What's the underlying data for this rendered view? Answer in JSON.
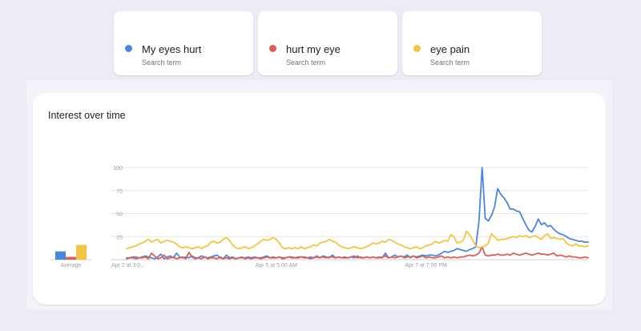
{
  "terms": [
    {
      "name": "My eyes hurt",
      "sub": "Search term",
      "color": "#4a86e0"
    },
    {
      "name": "hurt my eye",
      "sub": "Search term",
      "color": "#db5f57"
    },
    {
      "name": "eye pain",
      "sub": "Search term",
      "color": "#f4c542"
    }
  ],
  "chart_data": {
    "type": "line",
    "title": "Interest over time",
    "ylim": [
      0,
      100
    ],
    "yticks": [
      {
        "value": 100,
        "label": "100"
      },
      {
        "value": 75,
        "label": "75"
      },
      {
        "value": 50,
        "label": "50"
      },
      {
        "value": 25,
        "label": "25"
      }
    ],
    "x_count": 149,
    "xticks": [
      {
        "index": 0,
        "label": "Apr 2 at 3:0..."
      },
      {
        "index": 48,
        "label": "Apr 5 at 5:00 AM"
      },
      {
        "index": 96,
        "label": "Apr 7 at 7:00 PM"
      }
    ],
    "average": {
      "label": "Average",
      "values": [
        {
          "series": "My eyes hurt",
          "value": 9
        },
        {
          "series": "hurt my eye",
          "value": 3
        },
        {
          "series": "eye pain",
          "value": 16
        }
      ]
    },
    "series": [
      {
        "name": "My eyes hurt",
        "color": "#4a86e0",
        "values": [
          2,
          2,
          3,
          3,
          2,
          3,
          4,
          3,
          2,
          1,
          3,
          6,
          1,
          3,
          4,
          2,
          7,
          3,
          2,
          3,
          2,
          4,
          2,
          2,
          4,
          3,
          2,
          3,
          4,
          5,
          2,
          1,
          5,
          2,
          3,
          1,
          2,
          2,
          2,
          3,
          2,
          3,
          2,
          2,
          3,
          4,
          2,
          3,
          2,
          3,
          2,
          2,
          3,
          3,
          2,
          3,
          3,
          3,
          2,
          3,
          2,
          4,
          2,
          4,
          3,
          2,
          5,
          2,
          3,
          2,
          3,
          2,
          3,
          2,
          4,
          2,
          2,
          3,
          2,
          3,
          2,
          3,
          2,
          7,
          2,
          3,
          5,
          3,
          4,
          3,
          5,
          2,
          4,
          3,
          4,
          5,
          4,
          5,
          5,
          4,
          5,
          7,
          9,
          8,
          9,
          10,
          12,
          11,
          10,
          9,
          11,
          12,
          14,
          42,
          100,
          45,
          42,
          48,
          57,
          77,
          71,
          67,
          62,
          55,
          55,
          53,
          52,
          45,
          38,
          32,
          30,
          36,
          44,
          38,
          40,
          36,
          37,
          33,
          30,
          28,
          27,
          25,
          23,
          22,
          21,
          20,
          20,
          19,
          19
        ]
      },
      {
        "name": "hurt my eye",
        "color": "#db5f57",
        "values": [
          1,
          2,
          2,
          1,
          2,
          2,
          3,
          1,
          7,
          4,
          1,
          2,
          5,
          1,
          2,
          3,
          1,
          2,
          3,
          1,
          8,
          3,
          1,
          2,
          1,
          3,
          1,
          2,
          2,
          1,
          3,
          1,
          2,
          1,
          2,
          1,
          2,
          3,
          1,
          2,
          1,
          2,
          2,
          1,
          2,
          3,
          2,
          2,
          2,
          3,
          1,
          2,
          3,
          2,
          2,
          2,
          3,
          2,
          2,
          1,
          2,
          3,
          2,
          3,
          2,
          3,
          3,
          2,
          3,
          2,
          2,
          2,
          3,
          4,
          2,
          3,
          2,
          3,
          2,
          3,
          2,
          2,
          3,
          4,
          2,
          3,
          2,
          3,
          4,
          2,
          3,
          3,
          4,
          2,
          3,
          4,
          2,
          3,
          2,
          2,
          3,
          4,
          2,
          3,
          2,
          3,
          2,
          3,
          3,
          4,
          5,
          4,
          5,
          7,
          14,
          5,
          4,
          5,
          5,
          6,
          5,
          5,
          6,
          5,
          7,
          6,
          5,
          6,
          7,
          6,
          5,
          6,
          7,
          6,
          6,
          5,
          6,
          7,
          4,
          5,
          4,
          3,
          4,
          3,
          3,
          2,
          2,
          3,
          2
        ]
      },
      {
        "name": "eye pain",
        "color": "#f4c542",
        "values": [
          12,
          13,
          14,
          15,
          17,
          18,
          20,
          22,
          19,
          21,
          22,
          18,
          20,
          21,
          20,
          19,
          17,
          14,
          13,
          14,
          13,
          12,
          13,
          14,
          12,
          14,
          15,
          19,
          20,
          18,
          19,
          22,
          24,
          21,
          16,
          13,
          12,
          13,
          14,
          12,
          13,
          15,
          17,
          20,
          22,
          21,
          22,
          24,
          22,
          18,
          13,
          12,
          13,
          12,
          13,
          12,
          14,
          12,
          13,
          14,
          16,
          15,
          18,
          19,
          20,
          22,
          20,
          19,
          16,
          14,
          13,
          12,
          13,
          14,
          13,
          12,
          13,
          14,
          16,
          18,
          17,
          18,
          20,
          19,
          22,
          21,
          19,
          17,
          16,
          14,
          13,
          12,
          13,
          14,
          12,
          13,
          15,
          16,
          17,
          20,
          18,
          19,
          21,
          20,
          27,
          25,
          18,
          19,
          21,
          31,
          27,
          21,
          15,
          13,
          14,
          15,
          18,
          28,
          25,
          21,
          22,
          22,
          23,
          24,
          25,
          24,
          26,
          25,
          26,
          24,
          25,
          26,
          24,
          22,
          26,
          28,
          23,
          24,
          23,
          22,
          23,
          18,
          16,
          15,
          17,
          15,
          15,
          14,
          15
        ]
      }
    ]
  }
}
